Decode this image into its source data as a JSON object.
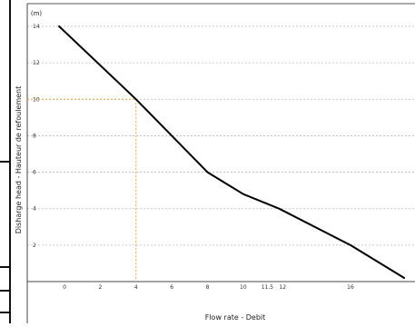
{
  "chart_data": {
    "type": "line",
    "title": "",
    "xlabel": "Flow rate  - Debit",
    "ylabel": "Disharge head  - Hauteur de refoulement",
    "y_unit": "(m)",
    "xlim": [
      -0.5,
      19
    ],
    "ylim": [
      0,
      14.5
    ],
    "x_ticks": [
      {
        "value": 0,
        "label": "0"
      },
      {
        "value": 2,
        "label": "2"
      },
      {
        "value": 4,
        "label": "4"
      },
      {
        "value": 6,
        "label": "6"
      },
      {
        "value": 8,
        "label": "8"
      },
      {
        "value": 10,
        "label": "10"
      },
      {
        "value": 11.5,
        "label": "11.5"
      },
      {
        "value": 12,
        "label": "12"
      },
      {
        "value": 16,
        "label": "16"
      }
    ],
    "y_ticks": [
      {
        "value": 2,
        "label": "2"
      },
      {
        "value": 4,
        "label": "4"
      },
      {
        "value": 6,
        "label": "6"
      },
      {
        "value": 8,
        "label": "8"
      },
      {
        "value": 10,
        "label": "10"
      },
      {
        "value": 12,
        "label": "12"
      },
      {
        "value": 14,
        "label": "14"
      }
    ],
    "grid": {
      "horizontal": true,
      "vertical": false,
      "style": "dashed"
    },
    "series": [
      {
        "color": "#000000",
        "x": [
          -0.3,
          4,
          8,
          10,
          12,
          16,
          19
        ],
        "y": [
          14,
          10,
          6,
          4.8,
          4,
          2,
          0.2
        ]
      }
    ],
    "annotations": [
      {
        "type": "reference",
        "x": 4,
        "y": 10,
        "color": "#e8a040"
      }
    ]
  }
}
